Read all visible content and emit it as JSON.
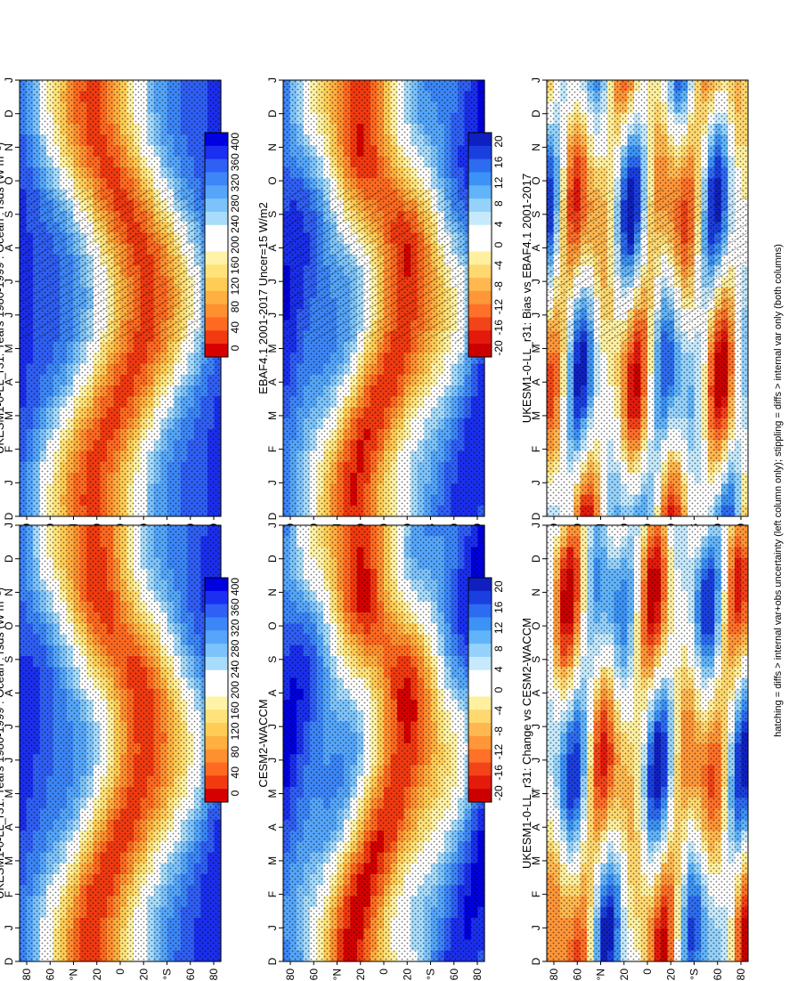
{
  "figure": {
    "orientation": "rotated-90-clockwise",
    "footnote": "hatching = diffs > internal var+obs uncertainty (left column only); stippling = diffs > internal var only (both columns)"
  },
  "colors": {
    "abs_scale": [
      "#0000e0",
      "#1a2ff0",
      "#2f5ff5",
      "#3c86f8",
      "#55a6fa",
      "#7dc3fb",
      "#a8dcfb",
      "#ffffff",
      "#ffffff",
      "#fff3a8",
      "#ffe27a",
      "#ffcc55",
      "#ffb040",
      "#ff9030",
      "#ff6a20",
      "#f23a10",
      "#d70000"
    ],
    "diff_scale": [
      "#1020c0",
      "#1a3fe0",
      "#2d6cf0",
      "#3d92f5",
      "#62b4fa",
      "#95d2fb",
      "#c6e9fc",
      "#ffffff",
      "#ffffff",
      "#fff0a0",
      "#ffd870",
      "#ffb850",
      "#ff9638",
      "#ff7028",
      "#f24418",
      "#e41a0c",
      "#cc0000"
    ]
  },
  "chart_data": [
    {
      "id": "p1",
      "type": "heatmap",
      "title": "UKESM1-0-LL_r31: Years 1980-1999 : Ocean : rsds (W m⁻²)",
      "x_axis": "latitude",
      "y_axis": "month",
      "months": [
        "D",
        "J",
        "F",
        "M",
        "A",
        "M",
        "J",
        "J",
        "A",
        "S",
        "O",
        "N",
        "D",
        "J"
      ],
      "lat_ticks": [
        "80",
        "60",
        "°N",
        "20",
        "0",
        "20",
        "°S",
        "60",
        "80"
      ],
      "colorbar": {
        "labels": [
          "400",
          "360",
          "320",
          "280",
          "240",
          "200",
          "160",
          "120",
          "80",
          "40",
          "0"
        ],
        "range": [
          0,
          400
        ],
        "scale": "abs_scale"
      },
      "variable": "rsds",
      "units": "W m-2",
      "hatching": true
    },
    {
      "id": "p2",
      "type": "heatmap",
      "title": "UKESM1-0-LL_r31: Years 1980-1999 : Ocean : rsds (W m⁻²)",
      "x_axis": "latitude",
      "y_axis": "month",
      "months": [
        "D",
        "J",
        "F",
        "M",
        "A",
        "M",
        "J",
        "J",
        "A",
        "S",
        "O",
        "N",
        "D",
        "J"
      ],
      "lat_ticks": [
        "80",
        "60",
        "°N",
        "20",
        "0",
        "20",
        "°S",
        "60",
        "80"
      ],
      "colorbar": {
        "labels": [
          "400",
          "360",
          "320",
          "280",
          "240",
          "200",
          "160",
          "120",
          "80",
          "40",
          "0"
        ],
        "range": [
          0,
          400
        ],
        "scale": "abs_scale"
      },
      "variable": "rsds",
      "units": "W m-2",
      "hatching": false
    },
    {
      "id": "p3",
      "type": "heatmap",
      "title": "EBAF4.1 2001-2017 Uncer=15 W/m2",
      "x_axis": "latitude",
      "y_axis": "month",
      "months": [
        "D",
        "J",
        "F",
        "M",
        "A",
        "M",
        "J",
        "J",
        "A",
        "S",
        "O",
        "N",
        "D",
        "J"
      ],
      "lat_ticks": [
        "80",
        "60",
        "°N",
        "20",
        "0",
        "20",
        "°S",
        "60",
        "80"
      ],
      "colorbar": {
        "labels": [
          "400",
          "360",
          "320",
          "280",
          "240",
          "200",
          "160",
          "120",
          "80",
          "40",
          "0"
        ],
        "range": [
          0,
          400
        ],
        "scale": "abs_scale"
      },
      "hatching": true
    },
    {
      "id": "p4",
      "type": "heatmap",
      "title": "CESM2-WACCM",
      "x_axis": "latitude",
      "y_axis": "month",
      "months": [
        "D",
        "J",
        "F",
        "M",
        "A",
        "M",
        "J",
        "J",
        "A",
        "S",
        "O",
        "N",
        "D",
        "J"
      ],
      "lat_ticks": [
        "80",
        "60",
        "°N",
        "20",
        "0",
        "20",
        "°S",
        "60",
        "80"
      ],
      "colorbar": {
        "labels": [
          "400",
          "360",
          "320",
          "280",
          "240",
          "200",
          "160",
          "120",
          "80",
          "40",
          "0"
        ],
        "range": [
          0,
          400
        ],
        "scale": "abs_scale"
      },
      "hatching": false
    },
    {
      "id": "p5",
      "type": "heatmap",
      "title": "UKESM1-0-LL_r31: Bias vs EBAF4.1 2001-2017",
      "x_axis": "latitude",
      "y_axis": "month",
      "months": [
        "D",
        "J",
        "F",
        "M",
        "A",
        "M",
        "J",
        "J",
        "A",
        "S",
        "O",
        "N",
        "D",
        "J"
      ],
      "lat_ticks": [
        "80",
        "60",
        "°N",
        "20",
        "0",
        "20",
        "°S",
        "60",
        "80"
      ],
      "colorbar": {
        "labels": [
          "20",
          "16",
          "12",
          "8",
          "4",
          "0",
          "-4",
          "-8",
          "-12",
          "-16",
          "-20"
        ],
        "range": [
          -20,
          20
        ],
        "scale": "diff_scale"
      },
      "hatching": true
    },
    {
      "id": "p6",
      "type": "heatmap",
      "title": "UKESM1-0-LL_r31: Change vs CESM2-WACCM",
      "x_axis": "latitude",
      "y_axis": "month",
      "months": [
        "D",
        "J",
        "F",
        "M",
        "A",
        "M",
        "J",
        "J",
        "A",
        "S",
        "O",
        "N",
        "D",
        "J"
      ],
      "lat_ticks": [
        "80",
        "60",
        "°N",
        "20",
        "0",
        "20",
        "°S",
        "60",
        "80"
      ],
      "colorbar": {
        "labels": [
          "20",
          "16",
          "12",
          "8",
          "4",
          "0",
          "-4",
          "-8",
          "-12",
          "-16",
          "-20"
        ],
        "range": [
          -20,
          20
        ],
        "scale": "diff_scale"
      },
      "hatching": false
    }
  ]
}
